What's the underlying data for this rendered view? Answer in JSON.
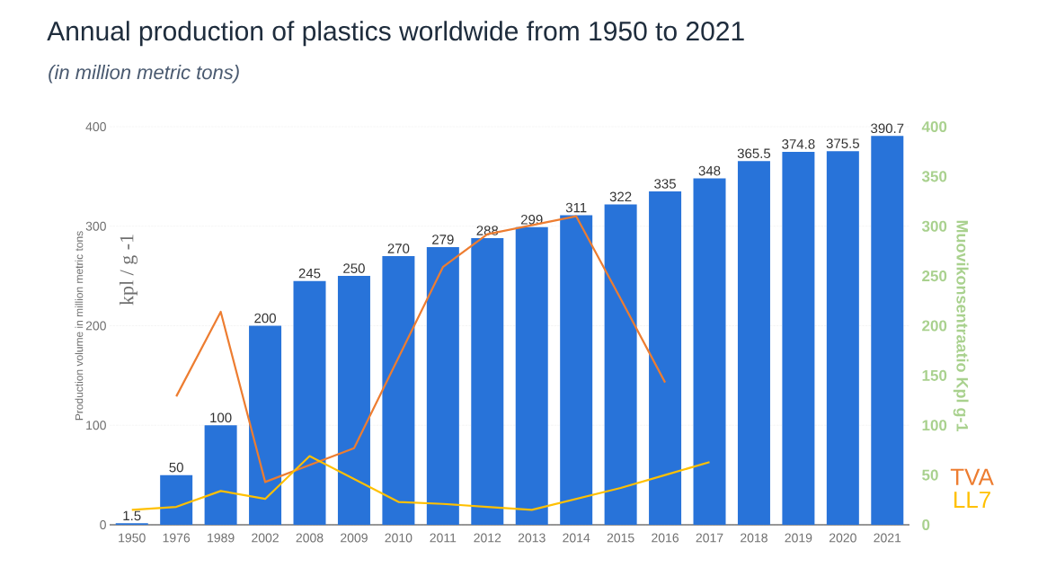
{
  "chart_data": {
    "type": "bar",
    "title": "Annual production of plastics worldwide from 1950 to 2021",
    "subtitle": "(in million metric tons)",
    "ylabel": "Production volume in million metric tons",
    "y2label": "Muovikonsentraatio Kpl g-1",
    "annotations": [
      "kpl / g -1"
    ],
    "categories": [
      "1950",
      "1976",
      "1989",
      "2002",
      "2008",
      "2009",
      "2010",
      "2011",
      "2012",
      "2013",
      "2014",
      "2015",
      "2016",
      "2017",
      "2018",
      "2019",
      "2020",
      "2021"
    ],
    "series": [
      {
        "color": "#2873d9",
        "values": [
          1.5,
          50,
          100,
          200,
          245,
          250,
          270,
          279,
          288,
          299,
          311,
          322,
          335,
          348,
          365.5,
          374.8,
          375.5,
          390.7
        ],
        "value_labels": [
          "1.5",
          "50",
          "100",
          "200",
          "245",
          "250",
          "270",
          "279",
          "288",
          "299",
          "311",
          "322",
          "335",
          "348",
          "365.5",
          "374.8",
          "375.5",
          "390.7"
        ]
      },
      {
        "type": "line",
        "name": "TVA",
        "axis": "y2",
        "color": "#ed7d31",
        "values": [
          null,
          129,
          214,
          43,
          60,
          77,
          168,
          259,
          292,
          301,
          310,
          227,
          143,
          null,
          null,
          null,
          null,
          null
        ]
      },
      {
        "type": "line",
        "name": "LL7",
        "axis": "y2",
        "color": "#ffc000",
        "values": [
          15,
          18,
          34,
          26,
          69,
          46,
          23,
          21,
          18,
          15,
          26,
          37,
          50,
          63,
          null,
          null,
          null,
          null
        ]
      }
    ],
    "ylim": [
      0,
      400
    ],
    "yticks": [
      0,
      100,
      200,
      300,
      400
    ],
    "y2lim": [
      0,
      400
    ],
    "y2ticks": [
      0,
      50,
      100,
      150,
      200,
      250,
      300,
      350,
      400
    ],
    "grid": "y",
    "legend": "right"
  }
}
